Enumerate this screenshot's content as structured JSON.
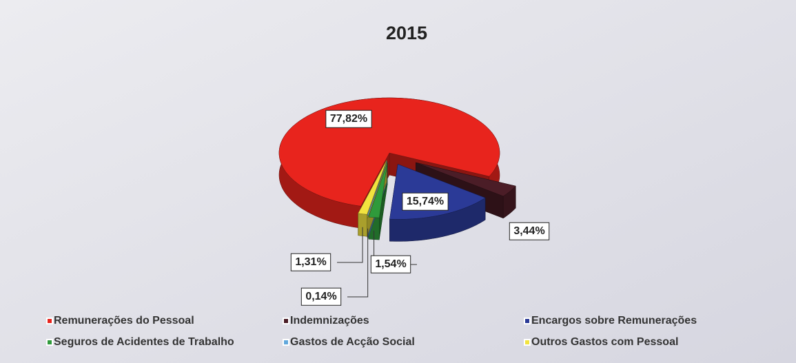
{
  "chart_data": {
    "type": "pie",
    "title": "2015",
    "categories": [
      "Remunerações do Pessoal",
      "Indemnizações",
      "Encargos sobre Remunerações",
      "Seguros de Acidentes de Trabalho",
      "Gastos de Acção Social",
      "Outros Gastos com Pessoal"
    ],
    "values": [
      77.82,
      3.44,
      15.74,
      1.54,
      0.14,
      1.31
    ],
    "value_labels": [
      "77,82%",
      "3,44%",
      "15,74%",
      "1,54%",
      "0,14%",
      "1,31%"
    ],
    "colors": [
      "#e8241d",
      "#4b1d27",
      "#2b3a97",
      "#2f9a3b",
      "#62a8dc",
      "#f2e33f"
    ],
    "legend": "bottom"
  }
}
